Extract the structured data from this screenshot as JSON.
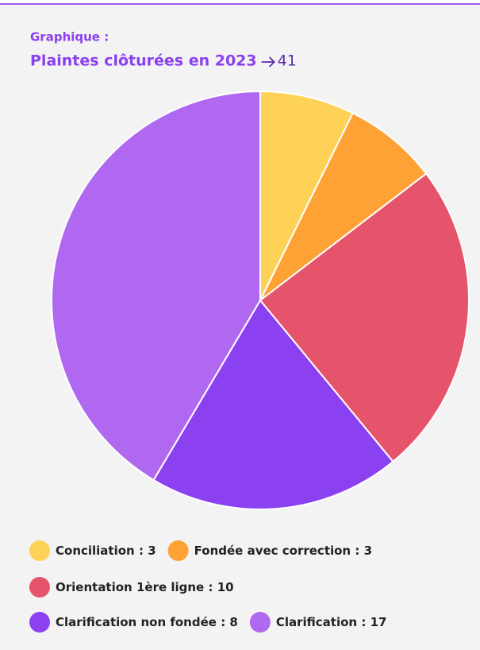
{
  "chart_data": {
    "type": "pie",
    "kicker": "Graphique :",
    "title": "Plaintes clôturées en 2023",
    "total": 41,
    "categories": [
      "Conciliation",
      "Fondée avec correction",
      "Orientation 1ère ligne",
      "Clarification non fondée",
      "Clarification"
    ],
    "values": [
      3,
      3,
      10,
      8,
      17
    ],
    "colors": [
      "#fdd257",
      "#ffa235",
      "#e5546a",
      "#8c41f0",
      "#b068f0"
    ],
    "legend_separator": ":"
  }
}
